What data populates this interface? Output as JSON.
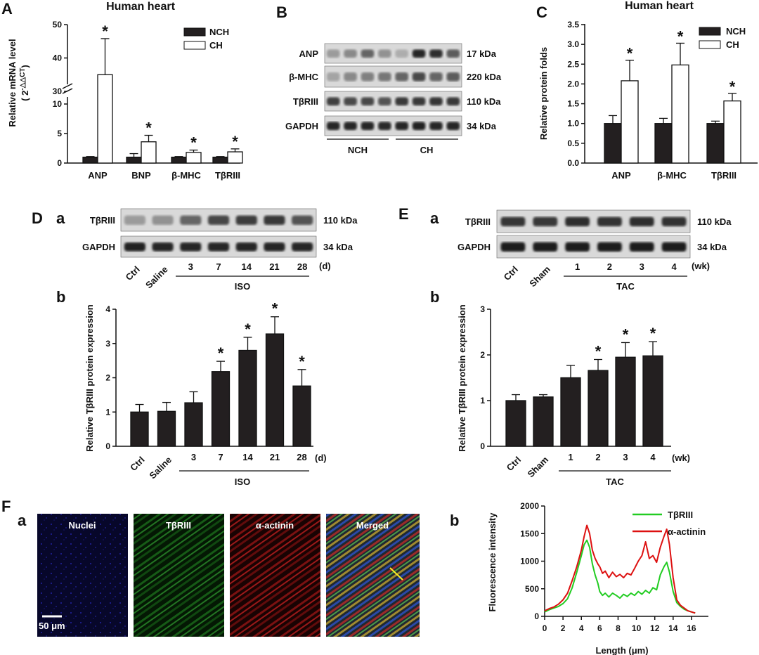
{
  "panels": {
    "A": "A",
    "B": "B",
    "C": "C",
    "D": "D",
    "E": "E",
    "F": "F",
    "a": "a",
    "b": "b"
  },
  "colors": {
    "nch": "#231f20",
    "ch": "#ffffff",
    "green": "#22cc22",
    "red": "#dd1111"
  },
  "chart_data": [
    {
      "id": "A",
      "type": "bar",
      "title": "Human heart",
      "ylabel": "Relative mRNA level",
      "ylabel2": "( 2",
      "ylabel2_sup": "-△△CT",
      "ylabel2_end": ")",
      "categories": [
        "ANP",
        "BNP",
        "β-MHC",
        "TβRIII"
      ],
      "series": [
        {
          "name": "NCH",
          "values": [
            1.0,
            1.0,
            1.0,
            1.0
          ],
          "errors": [
            0.1,
            0.6,
            0.1,
            0.1
          ]
        },
        {
          "name": "CH",
          "values": [
            35.0,
            3.6,
            1.8,
            1.9
          ],
          "errors": [
            10.8,
            1.1,
            0.4,
            0.5
          ]
        }
      ],
      "star_labels": [
        "*",
        "*",
        "*",
        "*"
      ],
      "yticks_low": [
        "0",
        "5",
        "10"
      ],
      "yticks_high": [
        "30",
        "40",
        "50"
      ],
      "axis_break": [
        10,
        30
      ]
    },
    {
      "id": "C",
      "type": "bar",
      "title": "Human heart",
      "ylabel": "Relative protein folds",
      "categories": [
        "ANP",
        "β-MHC",
        "TβRIII"
      ],
      "ylim": [
        0,
        3.5
      ],
      "yticks": [
        "0.0",
        "0.5",
        "1.0",
        "1.5",
        "2.0",
        "2.5",
        "3.0",
        "3.5"
      ],
      "series": [
        {
          "name": "NCH",
          "values": [
            1.0,
            1.0,
            1.0
          ],
          "errors": [
            0.2,
            0.13,
            0.06
          ]
        },
        {
          "name": "CH",
          "values": [
            2.08,
            2.48,
            1.57
          ],
          "errors": [
            0.52,
            0.55,
            0.19
          ]
        }
      ],
      "star_labels": [
        "*",
        "*",
        "*"
      ]
    },
    {
      "id": "Db",
      "type": "bar",
      "ylabel": "Relative TβRIII protein expression",
      "categories": [
        "Ctrl",
        "Saline",
        "3",
        "7",
        "14",
        "21",
        "28"
      ],
      "unit": "(d)",
      "group_label": "ISO",
      "ylim": [
        0,
        4
      ],
      "yticks": [
        "0",
        "1",
        "2",
        "3",
        "4"
      ],
      "values": [
        1.0,
        1.02,
        1.27,
        2.18,
        2.8,
        3.28,
        1.76
      ],
      "errors": [
        0.22,
        0.26,
        0.32,
        0.3,
        0.38,
        0.5,
        0.48
      ],
      "stars": [
        false,
        false,
        false,
        true,
        true,
        true,
        true
      ],
      "star_labels": [
        "",
        "",
        "",
        "*",
        "*",
        "*",
        "*"
      ]
    },
    {
      "id": "Eb",
      "type": "bar",
      "ylabel": "Relative TβRIII protein expression",
      "categories": [
        "Ctrl",
        "Sham",
        "1",
        "2",
        "3",
        "4"
      ],
      "unit": "(wk)",
      "group_label": "TAC",
      "ylim": [
        0,
        3
      ],
      "yticks": [
        "0",
        "1",
        "2",
        "3"
      ],
      "values": [
        1.0,
        1.08,
        1.5,
        1.66,
        1.95,
        1.98
      ],
      "errors": [
        0.13,
        0.05,
        0.27,
        0.24,
        0.32,
        0.31
      ],
      "stars": [
        false,
        false,
        false,
        true,
        true,
        true
      ],
      "star_labels": [
        "",
        "",
        "",
        "*",
        "*",
        "*"
      ]
    },
    {
      "id": "Fb",
      "type": "line",
      "xlabel": "Length (μm)",
      "ylabel": "Fluorescence intensity",
      "xlim": [
        0,
        17
      ],
      "ylim": [
        0,
        2000
      ],
      "xticks": [
        "0",
        "2",
        "4",
        "6",
        "8",
        "10",
        "12",
        "14",
        "16"
      ],
      "yticks": [
        "0",
        "500",
        "1000",
        "1500",
        "2000"
      ],
      "series": [
        {
          "name": "TβRIII",
          "color": "#22cc22",
          "x": [
            0,
            0.5,
            1,
            1.5,
            2,
            2.5,
            3,
            3.5,
            4,
            4.3,
            4.6,
            4.9,
            5.2,
            5.5,
            5.8,
            6,
            6.3,
            6.6,
            7,
            7.4,
            7.8,
            8.2,
            8.6,
            9,
            9.4,
            9.8,
            10.2,
            10.6,
            11,
            11.4,
            11.8,
            12.2,
            12.6,
            13,
            13.3,
            13.6,
            14,
            14.4,
            14.8,
            15.2,
            15.6,
            16,
            16.4
          ],
          "y": [
            80,
            120,
            150,
            180,
            230,
            320,
            520,
            800,
            1100,
            1300,
            1380,
            1250,
            950,
            750,
            600,
            450,
            380,
            420,
            350,
            420,
            380,
            330,
            400,
            360,
            420,
            380,
            450,
            400,
            470,
            420,
            520,
            480,
            750,
            900,
            980,
            800,
            450,
            250,
            180,
            130,
            100,
            80,
            60
          ]
        },
        {
          "name": "α-actinin",
          "color": "#dd1111",
          "x": [
            0,
            0.5,
            1,
            1.5,
            2,
            2.5,
            3,
            3.5,
            4,
            4.3,
            4.6,
            4.9,
            5.2,
            5.5,
            5.8,
            6,
            6.3,
            6.6,
            7,
            7.4,
            7.8,
            8.2,
            8.6,
            9,
            9.4,
            9.8,
            10.2,
            10.6,
            11,
            11.4,
            11.8,
            12.2,
            12.6,
            13,
            13.3,
            13.6,
            14,
            14.4,
            14.8,
            15.2,
            15.6,
            16,
            16.4
          ],
          "y": [
            100,
            140,
            170,
            220,
            300,
            420,
            650,
            900,
            1200,
            1450,
            1650,
            1500,
            1200,
            1050,
            950,
            900,
            780,
            820,
            700,
            800,
            720,
            760,
            700,
            780,
            750,
            870,
            1000,
            1100,
            1350,
            1050,
            1100,
            980,
            1250,
            1450,
            1580,
            1300,
            700,
            300,
            200,
            150,
            100,
            80,
            60
          ]
        }
      ]
    }
  ],
  "blot_B": {
    "rows": [
      {
        "label": "ANP",
        "kda": "17 kDa"
      },
      {
        "label": "β-MHC",
        "kda": "220 kDa"
      },
      {
        "label": "TβRIII",
        "kda": "110 kDa"
      },
      {
        "label": "GAPDH",
        "kda": "34 kDa"
      }
    ],
    "groups": [
      "NCH",
      "CH"
    ]
  },
  "blot_D": {
    "rows": [
      {
        "label": "TβRIII",
        "kda": "110 kDa"
      },
      {
        "label": "GAPDH",
        "kda": "34 kDa"
      }
    ],
    "lanes": [
      "Ctrl",
      "Saline",
      "3",
      "7",
      "14",
      "21",
      "28"
    ],
    "unit": "(d)",
    "group": "ISO"
  },
  "blot_E": {
    "rows": [
      {
        "label": "TβRIII",
        "kda": "110 kDa"
      },
      {
        "label": "GAPDH",
        "kda": "34 kDa"
      }
    ],
    "lanes": [
      "Ctrl",
      "Sham",
      "1",
      "2",
      "3",
      "4"
    ],
    "unit": "(wk)",
    "group": "TAC"
  },
  "images_F": {
    "labels": [
      "Nuclei",
      "TβRIII",
      "α-actinin",
      "Merged"
    ],
    "scale": "50 μm"
  }
}
